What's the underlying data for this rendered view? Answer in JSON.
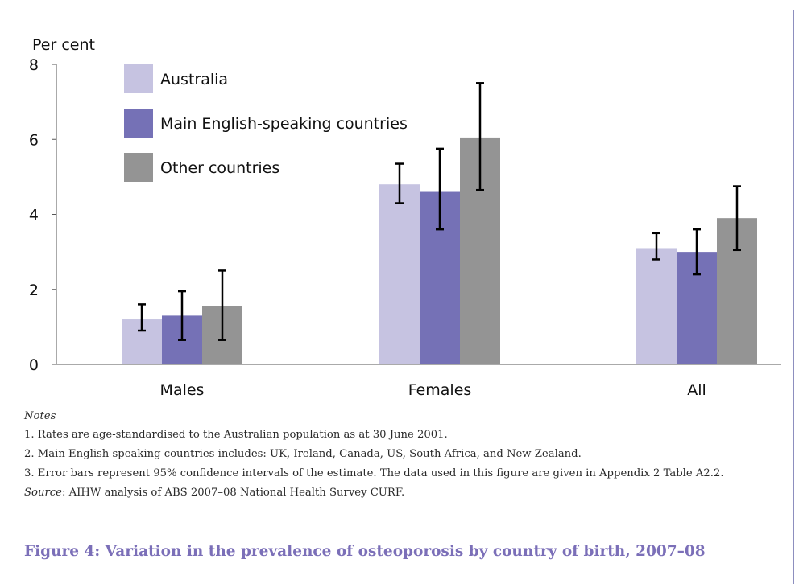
{
  "chart_data": {
    "type": "bar",
    "ylabel": "Per cent",
    "ylim": [
      0,
      8
    ],
    "yticks": [
      0,
      2,
      4,
      6,
      8
    ],
    "categories": [
      "Males",
      "Females",
      "All"
    ],
    "series": [
      {
        "name": "Australia",
        "color": "#c6c3e1",
        "values": [
          1.2,
          4.8,
          3.1
        ],
        "ci_low": [
          0.9,
          4.3,
          2.8
        ],
        "ci_high": [
          1.6,
          5.35,
          3.5
        ]
      },
      {
        "name": "Main English-speaking countries",
        "color": "#7571b6",
        "values": [
          1.3,
          4.6,
          3.0
        ],
        "ci_low": [
          0.65,
          3.6,
          2.4
        ],
        "ci_high": [
          1.95,
          5.75,
          3.6
        ]
      },
      {
        "name": "Other countries",
        "color": "#949494",
        "values": [
          1.55,
          6.05,
          3.9
        ],
        "ci_low": [
          0.65,
          4.65,
          3.05
        ],
        "ci_high": [
          2.5,
          7.5,
          4.75
        ]
      }
    ],
    "legend_position": "top-left",
    "grid": false
  },
  "notes": {
    "header": "Notes",
    "items": [
      "1. Rates are age-standardised to the Australian population as at 30 June 2001.",
      "2. Main English speaking countries includes: UK, Ireland, Canada, US, South Africa, and New Zealand.",
      "3. Error bars represent 95% confidence intervals of the estimate. The data used in this figure are given in Appendix 2 Table A2.2."
    ],
    "source_label": "Source",
    "source_text": ": AIHW analysis of ABS 2007–08 National Health Survey CURF."
  },
  "caption": "Figure 4: Variation in the prevalence of osteoporosis by country of birth, 2007–08"
}
